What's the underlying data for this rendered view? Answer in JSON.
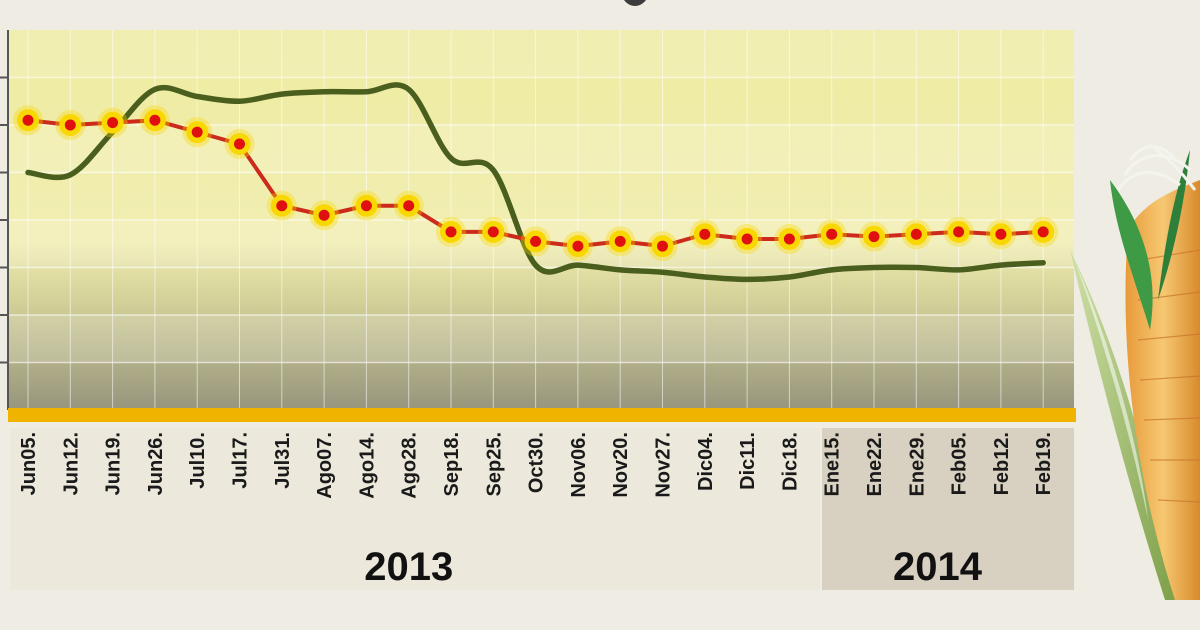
{
  "chart_data": {
    "type": "line",
    "title": "",
    "xlabel": "",
    "ylabel": "",
    "categories": [
      "Jun05.",
      "Jun12.",
      "Jun19.",
      "Jun26.",
      "Jul10.",
      "Jul17.",
      "Jul31.",
      "Ago07.",
      "Ago14.",
      "Ago28.",
      "Sep18.",
      "Sep25.",
      "Oct30.",
      "Nov06.",
      "Nov20.",
      "Nov27.",
      "Dic04.",
      "Dic11.",
      "Dic18.",
      "Ene15.",
      "Ene22.",
      "Ene29.",
      "Feb05.",
      "Feb12.",
      "Feb19."
    ],
    "year_groups": [
      {
        "label": "2013",
        "start": 0,
        "end": 18
      },
      {
        "label": "2014",
        "start": 19,
        "end": 24
      }
    ],
    "ylim": [
      0,
      8
    ],
    "grid": true,
    "legend": "none",
    "series": [
      {
        "values": [
          6.1,
          6.0,
          6.05,
          6.1,
          5.85,
          5.6,
          4.3,
          4.1,
          4.3,
          4.3,
          3.75,
          3.75,
          3.55,
          3.45,
          3.55,
          3.45,
          3.7,
          3.6,
          3.6,
          3.7,
          3.65,
          3.7,
          3.75,
          3.7,
          3.75
        ],
        "color": "#cc2a1a",
        "marker_fill": "#e01010",
        "marker_ring": "#f8d800"
      },
      {
        "values": [
          5.0,
          4.95,
          5.85,
          6.75,
          6.6,
          6.5,
          6.65,
          6.7,
          6.7,
          6.75,
          5.3,
          5.05,
          3.05,
          3.05,
          2.95,
          2.9,
          2.8,
          2.75,
          2.8,
          2.95,
          3.0,
          3.0,
          2.95,
          3.05,
          3.1
        ],
        "color": "#4a5e1e"
      }
    ]
  }
}
